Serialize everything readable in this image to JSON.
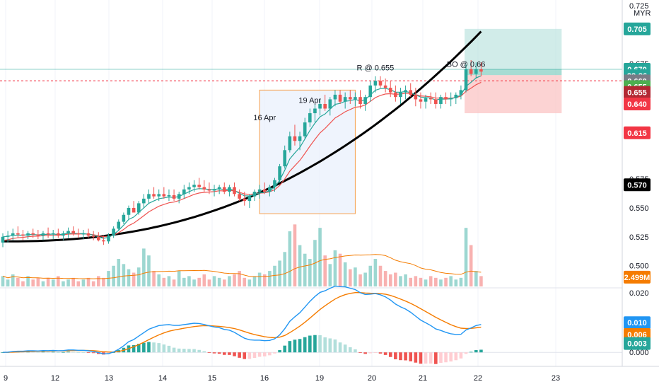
{
  "chart_data": {
    "type": "candlestick",
    "currency": "MYR",
    "x_tick_labels": [
      "9",
      "12",
      "13",
      "14",
      "15",
      "16",
      "19",
      "20",
      "21",
      "22",
      "23"
    ],
    "price_axis": {
      "ticks": [
        "0.725",
        "0.675",
        "0.575",
        "0.550",
        "0.525",
        "0.500"
      ],
      "range": [
        0.482,
        0.73
      ]
    },
    "price_tags": [
      {
        "label": "0.705",
        "value": 0.705,
        "color": "#26a69a"
      },
      {
        "label": "0.670",
        "value": 0.67,
        "color": "#26a69a"
      },
      {
        "label": "28:36",
        "value": 0.6645,
        "color": "#26a69a"
      },
      {
        "label": "0.660",
        "value": 0.66,
        "color": "#787b86"
      },
      {
        "label": "0.655",
        "value": 0.655,
        "color": "#4caf50"
      },
      {
        "label": "0.655",
        "value": 0.65,
        "color": "#b22833"
      },
      {
        "label": "0.640",
        "value": 0.64,
        "color": "#f23645"
      },
      {
        "label": "0.615",
        "value": 0.615,
        "color": "#f23645"
      },
      {
        "label": "0.570",
        "value": 0.57,
        "color": "#000000"
      },
      {
        "label": "2.499M",
        "value": 0.49,
        "color": "#f57c00"
      }
    ],
    "annotations": [
      {
        "text": "R @ 0.655",
        "bar": 74,
        "value": 0.669
      },
      {
        "text": "BO @ 0.66",
        "bar": 92,
        "value": 0.672
      },
      {
        "text": "16 Apr",
        "bar": 52,
        "value": 0.626
      },
      {
        "text": "19 Apr",
        "bar": 61,
        "value": 0.641
      }
    ],
    "resistance_level": 0.66,
    "highlight_box": {
      "from_bar": 51,
      "to_bar": 70,
      "top": 0.652,
      "bottom": 0.545
    },
    "position": {
      "from_bar": 92,
      "to_bar": 111,
      "entry": 0.665,
      "target": 0.705,
      "stop": 0.632
    },
    "candles": [
      [
        0.52,
        0.528,
        0.516,
        0.525
      ],
      [
        0.525,
        0.53,
        0.52,
        0.526
      ],
      [
        0.526,
        0.532,
        0.522,
        0.528
      ],
      [
        0.528,
        0.534,
        0.524,
        0.527
      ],
      [
        0.527,
        0.531,
        0.522,
        0.526
      ],
      [
        0.526,
        0.53,
        0.523,
        0.528
      ],
      [
        0.528,
        0.532,
        0.524,
        0.527
      ],
      [
        0.527,
        0.531,
        0.523,
        0.526
      ],
      [
        0.526,
        0.53,
        0.522,
        0.528
      ],
      [
        0.528,
        0.533,
        0.524,
        0.527
      ],
      [
        0.527,
        0.531,
        0.523,
        0.528
      ],
      [
        0.528,
        0.532,
        0.524,
        0.526
      ],
      [
        0.526,
        0.53,
        0.522,
        0.528
      ],
      [
        0.528,
        0.533,
        0.524,
        0.53
      ],
      [
        0.53,
        0.534,
        0.526,
        0.528
      ],
      [
        0.528,
        0.532,
        0.524,
        0.527
      ],
      [
        0.527,
        0.531,
        0.523,
        0.528
      ],
      [
        0.528,
        0.532,
        0.524,
        0.526
      ],
      [
        0.526,
        0.53,
        0.522,
        0.525
      ],
      [
        0.525,
        0.529,
        0.521,
        0.522
      ],
      [
        0.522,
        0.526,
        0.518,
        0.521
      ],
      [
        0.521,
        0.528,
        0.519,
        0.526
      ],
      [
        0.526,
        0.534,
        0.524,
        0.532
      ],
      [
        0.532,
        0.54,
        0.53,
        0.538
      ],
      [
        0.538,
        0.546,
        0.536,
        0.544
      ],
      [
        0.544,
        0.552,
        0.54,
        0.55
      ],
      [
        0.55,
        0.556,
        0.546,
        0.546
      ],
      [
        0.546,
        0.556,
        0.544,
        0.554
      ],
      [
        0.554,
        0.562,
        0.55,
        0.558
      ],
      [
        0.558,
        0.566,
        0.554,
        0.562
      ],
      [
        0.562,
        0.568,
        0.558,
        0.56
      ],
      [
        0.56,
        0.566,
        0.556,
        0.562
      ],
      [
        0.562,
        0.568,
        0.558,
        0.56
      ],
      [
        0.56,
        0.566,
        0.556,
        0.561
      ],
      [
        0.561,
        0.566,
        0.556,
        0.558
      ],
      [
        0.558,
        0.564,
        0.554,
        0.562
      ],
      [
        0.562,
        0.57,
        0.558,
        0.566
      ],
      [
        0.566,
        0.572,
        0.562,
        0.568
      ],
      [
        0.568,
        0.574,
        0.564,
        0.57
      ],
      [
        0.57,
        0.576,
        0.566,
        0.568
      ],
      [
        0.568,
        0.574,
        0.564,
        0.566
      ],
      [
        0.566,
        0.572,
        0.562,
        0.565
      ],
      [
        0.565,
        0.57,
        0.56,
        0.566
      ],
      [
        0.566,
        0.57,
        0.562,
        0.568
      ],
      [
        0.568,
        0.572,
        0.562,
        0.564
      ],
      [
        0.564,
        0.57,
        0.56,
        0.568
      ],
      [
        0.568,
        0.572,
        0.56,
        0.562
      ],
      [
        0.562,
        0.566,
        0.556,
        0.558
      ],
      [
        0.558,
        0.564,
        0.552,
        0.556
      ],
      [
        0.556,
        0.562,
        0.55,
        0.56
      ],
      [
        0.56,
        0.566,
        0.556,
        0.564
      ],
      [
        0.564,
        0.57,
        0.558,
        0.566
      ],
      [
        0.566,
        0.572,
        0.562,
        0.564
      ],
      [
        0.564,
        0.57,
        0.56,
        0.568
      ],
      [
        0.568,
        0.576,
        0.564,
        0.574
      ],
      [
        0.574,
        0.588,
        0.572,
        0.586
      ],
      [
        0.586,
        0.604,
        0.584,
        0.6
      ],
      [
        0.6,
        0.616,
        0.598,
        0.612
      ],
      [
        0.612,
        0.622,
        0.604,
        0.608
      ],
      [
        0.608,
        0.616,
        0.6,
        0.612
      ],
      [
        0.612,
        0.628,
        0.61,
        0.624
      ],
      [
        0.624,
        0.636,
        0.62,
        0.632
      ],
      [
        0.632,
        0.64,
        0.624,
        0.636
      ],
      [
        0.636,
        0.644,
        0.63,
        0.64
      ],
      [
        0.64,
        0.648,
        0.634,
        0.636
      ],
      [
        0.636,
        0.646,
        0.63,
        0.644
      ],
      [
        0.644,
        0.652,
        0.638,
        0.648
      ],
      [
        0.648,
        0.652,
        0.64,
        0.642
      ],
      [
        0.642,
        0.65,
        0.636,
        0.646
      ],
      [
        0.646,
        0.652,
        0.64,
        0.644
      ],
      [
        0.644,
        0.65,
        0.638,
        0.646
      ],
      [
        0.646,
        0.652,
        0.636,
        0.64
      ],
      [
        0.64,
        0.648,
        0.634,
        0.646
      ],
      [
        0.646,
        0.66,
        0.642,
        0.656
      ],
      [
        0.656,
        0.664,
        0.65,
        0.66
      ],
      [
        0.66,
        0.664,
        0.654,
        0.656
      ],
      [
        0.656,
        0.662,
        0.65,
        0.654
      ],
      [
        0.654,
        0.66,
        0.646,
        0.65
      ],
      [
        0.65,
        0.656,
        0.642,
        0.646
      ],
      [
        0.646,
        0.654,
        0.64,
        0.65
      ],
      [
        0.65,
        0.656,
        0.644,
        0.652
      ],
      [
        0.652,
        0.658,
        0.646,
        0.648
      ],
      [
        0.648,
        0.654,
        0.638,
        0.644
      ],
      [
        0.644,
        0.65,
        0.636,
        0.642
      ],
      [
        0.642,
        0.648,
        0.636,
        0.645
      ],
      [
        0.645,
        0.65,
        0.64,
        0.644
      ],
      [
        0.644,
        0.65,
        0.636,
        0.64
      ],
      [
        0.64,
        0.648,
        0.636,
        0.646
      ],
      [
        0.646,
        0.65,
        0.64,
        0.644
      ],
      [
        0.644,
        0.65,
        0.638,
        0.645
      ],
      [
        0.645,
        0.65,
        0.64,
        0.648
      ],
      [
        0.648,
        0.656,
        0.644,
        0.652
      ],
      [
        0.652,
        0.674,
        0.65,
        0.67
      ],
      [
        0.67,
        0.678,
        0.664,
        0.666
      ],
      [
        0.666,
        0.676,
        0.662,
        0.67
      ],
      [
        0.67,
        0.676,
        0.664,
        0.668
      ]
    ],
    "volume": {
      "max": 3.9,
      "values": [
        0.6,
        0.4,
        0.7,
        0.5,
        0.3,
        0.6,
        0.4,
        0.5,
        0.3,
        0.5,
        0.4,
        0.6,
        0.3,
        0.4,
        0.5,
        0.3,
        0.4,
        0.5,
        0.3,
        0.6,
        0.5,
        0.9,
        1.2,
        1.6,
        1.3,
        1.0,
        0.8,
        1.1,
        2.2,
        1.8,
        0.9,
        0.7,
        0.5,
        0.6,
        0.4,
        0.9,
        0.5,
        0.6,
        0.4,
        0.5,
        0.7,
        0.4,
        0.6,
        0.5,
        0.4,
        0.6,
        0.7,
        0.9,
        0.5,
        0.4,
        0.6,
        0.8,
        0.7,
        0.9,
        1.2,
        1.5,
        2.0,
        3.2,
        3.6,
        2.4,
        1.9,
        1.6,
        2.7,
        3.4,
        1.8,
        1.3,
        2.1,
        1.9,
        1.4,
        1.0,
        1.1,
        0.7,
        0.8,
        1.2,
        1.6,
        1.2,
        0.9,
        0.7,
        0.8,
        0.6,
        0.7,
        0.5,
        0.6,
        0.5,
        0.4,
        0.6,
        0.5,
        0.4,
        0.5,
        0.6,
        0.4,
        0.5,
        3.4,
        2.4,
        0.9,
        0.6
      ]
    },
    "macd": {
      "range": [
        -0.004,
        0.021
      ],
      "ticks": [
        "0.020",
        "0.000"
      ],
      "tags": [
        {
          "label": "0.010",
          "value": 0.01,
          "color": "#2196f3"
        },
        {
          "label": "0.006",
          "value": 0.006,
          "color": "#f57c00"
        },
        {
          "label": "0.003",
          "value": 0.003,
          "color": "#26a69a"
        }
      ]
    }
  }
}
